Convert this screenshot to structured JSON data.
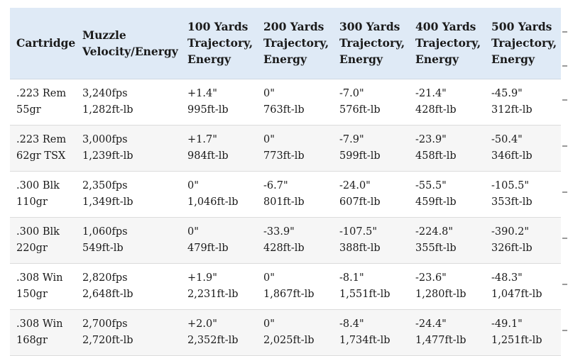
{
  "table": {
    "headers": [
      [
        "Cartridge"
      ],
      [
        "Muzzle",
        "Velocity/Energy"
      ],
      [
        "100 Yards",
        "Trajectory,",
        "Energy"
      ],
      [
        "200 Yards",
        "Trajectory,",
        "Energy"
      ],
      [
        "300 Yards",
        "Trajectory,",
        "Energy"
      ],
      [
        "400 Yards",
        "Trajectory,",
        "Energy"
      ],
      [
        "500 Yards",
        "Trajectory,",
        "Energy"
      ]
    ],
    "rows": [
      [
        [
          ".223 Rem",
          "55gr"
        ],
        [
          "3,240fps",
          "1,282ft-lb"
        ],
        [
          "+1.4\"",
          "995ft-lb"
        ],
        [
          "0\"",
          "763ft-lb"
        ],
        [
          "-7.0\"",
          "576ft-lb"
        ],
        [
          "-21.4\"",
          "428ft-lb"
        ],
        [
          "-45.9\"",
          "312ft-lb"
        ]
      ],
      [
        [
          ".223 Rem",
          "62gr TSX"
        ],
        [
          "3,000fps",
          "1,239ft-lb"
        ],
        [
          "+1.7\"",
          "984ft-lb"
        ],
        [
          "0\"",
          "773ft-lb"
        ],
        [
          "-7.9\"",
          "599ft-lb"
        ],
        [
          "-23.9\"",
          "458ft-lb"
        ],
        [
          "-50.4\"",
          "346ft-lb"
        ]
      ],
      [
        [
          ".300 Blk",
          "110gr"
        ],
        [
          "2,350fps",
          "1,349ft-lb"
        ],
        [
          "0\"",
          "1,046ft-lb"
        ],
        [
          "-6.7\"",
          "801ft-lb"
        ],
        [
          "-24.0\"",
          "607ft-lb"
        ],
        [
          "-55.5\"",
          "459ft-lb"
        ],
        [
          "-105.5\"",
          "353ft-lb"
        ]
      ],
      [
        [
          ".300 Blk",
          "220gr"
        ],
        [
          "1,060fps",
          "549ft-lb"
        ],
        [
          "0\"",
          "479ft-lb"
        ],
        [
          "-33.9\"",
          "428ft-lb"
        ],
        [
          "-107.5\"",
          "388ft-lb"
        ],
        [
          "-224.8\"",
          "355ft-lb"
        ],
        [
          "-390.2\"",
          "326ft-lb"
        ]
      ],
      [
        [
          ".308 Win",
          "150gr"
        ],
        [
          "2,820fps",
          "2,648ft-lb"
        ],
        [
          "+1.9\"",
          "2,231ft-lb"
        ],
        [
          "0\"",
          "1,867ft-lb"
        ],
        [
          "-8.1\"",
          "1,551ft-lb"
        ],
        [
          "-23.6\"",
          "1,280ft-lb"
        ],
        [
          "-48.3\"",
          "1,047ft-lb"
        ]
      ],
      [
        [
          ".308 Win",
          "168gr"
        ],
        [
          "2,700fps",
          "2,720ft-lb"
        ],
        [
          "+2.0\"",
          "2,352ft-lb"
        ],
        [
          "0\"",
          "2,025ft-lb"
        ],
        [
          "-8.4\"",
          "1,734ft-lb"
        ],
        [
          "-24.4\"",
          "1,477ft-lb"
        ],
        [
          "-49.1\"",
          "1,251ft-lb"
        ]
      ]
    ]
  },
  "colors": {
    "header_background": "#dfeaf6",
    "alt_row_background": "#f6f6f6",
    "text": "#1a1a1a"
  }
}
